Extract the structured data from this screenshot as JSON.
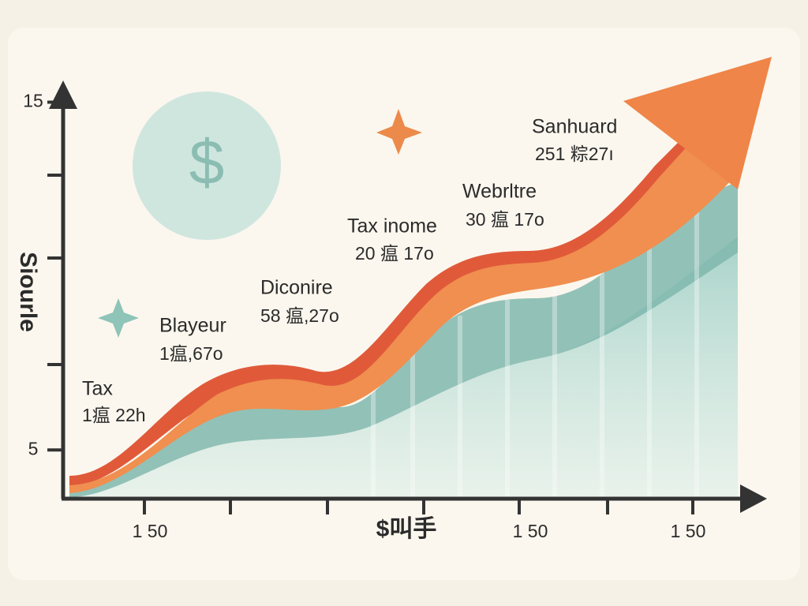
{
  "chart_data": {
    "type": "area",
    "ylabel": "Siourle",
    "xlabel": "$叫手",
    "ylim": [
      3.6,
      15.6
    ],
    "yticks": [
      5,
      15
    ],
    "xtick_labels": [
      "1 50",
      "1 50",
      "1 50"
    ],
    "annotations": [
      {
        "title": "Tax",
        "text": "1瘟 22h"
      },
      {
        "title": "Blayeur",
        "text": "1瘟,67o"
      },
      {
        "title": "Diconire",
        "text": "58 瘟,27o"
      },
      {
        "title": "Tax inome",
        "text": "20 瘟 17o"
      },
      {
        "title": "Webrltre",
        "text": "30 瘟 17o"
      },
      {
        "title": "Sanhuard",
        "text": "251 粽27ı"
      }
    ]
  }
}
